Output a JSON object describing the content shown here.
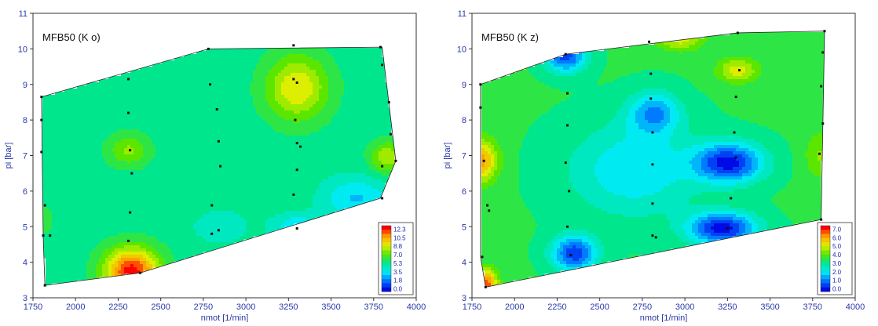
{
  "chart_data": [
    {
      "type": "heatmap",
      "title": "MFB50 (K o)",
      "xlabel": "nmot [1/min]",
      "ylabel": "pi [bar]",
      "xlim": [
        1750,
        4000
      ],
      "ylim": [
        3,
        11
      ],
      "x_ticks": [
        "1750",
        "2000",
        "2250",
        "2500",
        "2750",
        "3000",
        "3250",
        "3500",
        "3750",
        "4000"
      ],
      "y_ticks": [
        "3",
        "4",
        "5",
        "6",
        "7",
        "8",
        "9",
        "10",
        "11"
      ],
      "legend": {
        "position": "bottom-right",
        "levels": [
          "12.3",
          "10.5",
          "8.8",
          "7.0",
          "5.3",
          "3.5",
          "1.8",
          "0.0"
        ],
        "vmin": 0.0,
        "vmax": 12.3
      },
      "hull": [
        [
          1820,
          3.35
        ],
        [
          2380,
          3.7
        ],
        [
          3790,
          5.8
        ],
        [
          3880,
          6.85
        ],
        [
          3800,
          10.05
        ],
        [
          2780,
          10.0
        ],
        [
          1800,
          8.65
        ],
        [
          1810,
          4.7
        ]
      ],
      "peaks": [
        {
          "x": 3300,
          "y": 8.9,
          "value": 9.2,
          "spread": [
            180,
            0.9
          ]
        },
        {
          "x": 2330,
          "y": 3.75,
          "value": 12.3,
          "spread": [
            160,
            0.65
          ]
        },
        {
          "x": 2310,
          "y": 7.15,
          "value": 7.6,
          "spread": [
            120,
            0.45
          ]
        },
        {
          "x": 3830,
          "y": 6.95,
          "value": 8.2,
          "spread": [
            100,
            0.45
          ]
        },
        {
          "x": 3300,
          "y": 5.0,
          "value": 3.2,
          "spread": [
            150,
            0.35
          ]
        },
        {
          "x": 2850,
          "y": 5.0,
          "value": 4.0,
          "spread": [
            150,
            0.45
          ]
        },
        {
          "x": 3650,
          "y": 5.8,
          "value": 3.0,
          "spread": [
            200,
            0.6
          ]
        },
        {
          "x": 1820,
          "y": 5.2,
          "value": 5.8,
          "spread": [
            90,
            0.9
          ]
        }
      ],
      "base_value": 5.3,
      "points": [
        [
          1800,
          8.65
        ],
        [
          1800,
          8.0
        ],
        [
          1800,
          7.1
        ],
        [
          1820,
          5.6
        ],
        [
          1810,
          4.75
        ],
        [
          1850,
          4.75
        ],
        [
          1820,
          3.35
        ],
        [
          2310,
          9.15
        ],
        [
          2310,
          8.2
        ],
        [
          2320,
          7.15
        ],
        [
          2330,
          6.5
        ],
        [
          2320,
          5.4
        ],
        [
          2310,
          4.6
        ],
        [
          2380,
          3.7
        ],
        [
          2780,
          10.0
        ],
        [
          2790,
          9.0
        ],
        [
          2830,
          8.3
        ],
        [
          2840,
          7.4
        ],
        [
          2850,
          6.7
        ],
        [
          2800,
          5.6
        ],
        [
          2800,
          4.8
        ],
        [
          2840,
          4.9
        ],
        [
          3280,
          10.1
        ],
        [
          3280,
          9.15
        ],
        [
          3300,
          9.05
        ],
        [
          3290,
          8.0
        ],
        [
          3300,
          7.35
        ],
        [
          3320,
          7.25
        ],
        [
          3300,
          6.6
        ],
        [
          3280,
          5.9
        ],
        [
          3300,
          4.95
        ],
        [
          3790,
          10.05
        ],
        [
          3800,
          9.55
        ],
        [
          3840,
          8.5
        ],
        [
          3850,
          7.6
        ],
        [
          3800,
          6.7
        ],
        [
          3880,
          6.85
        ],
        [
          3800,
          5.8
        ]
      ]
    },
    {
      "type": "heatmap",
      "title": "MFB50 (K z)",
      "xlabel": "nmot [1/min]",
      "ylabel": "pi [bar]",
      "xlim": [
        1750,
        4000
      ],
      "ylim": [
        3,
        11
      ],
      "x_ticks": [
        "1750",
        "2000",
        "2250",
        "2500",
        "2750",
        "3000",
        "3250",
        "3500",
        "3750",
        "4000"
      ],
      "y_ticks": [
        "3",
        "4",
        "5",
        "6",
        "7",
        "8",
        "9",
        "10",
        "11"
      ],
      "legend": {
        "position": "bottom-right",
        "levels": [
          "7.0",
          "6.0",
          "5.0",
          "4.0",
          "3.0",
          "2.0",
          "1.0",
          "0.0"
        ],
        "vmin": 0.0,
        "vmax": 7.0
      },
      "hull": [
        [
          1800,
          4.15
        ],
        [
          1830,
          3.3
        ],
        [
          3800,
          5.2
        ],
        [
          3820,
          10.5
        ],
        [
          3310,
          10.45
        ],
        [
          2300,
          9.85
        ],
        [
          1800,
          9.0
        ]
      ],
      "peaks": [
        {
          "x": 3260,
          "y": 6.8,
          "value": 0.1,
          "spread": [
            200,
            0.55
          ]
        },
        {
          "x": 3220,
          "y": 4.95,
          "value": 0.0,
          "spread": [
            200,
            0.45
          ]
        },
        {
          "x": 2350,
          "y": 4.25,
          "value": 0.4,
          "spread": [
            130,
            0.5
          ]
        },
        {
          "x": 2300,
          "y": 9.8,
          "value": 0.5,
          "spread": [
            120,
            0.45
          ]
        },
        {
          "x": 2820,
          "y": 8.2,
          "value": 1.3,
          "spread": [
            150,
            0.6
          ]
        },
        {
          "x": 2700,
          "y": 6.6,
          "value": 1.8,
          "spread": [
            380,
            1.3
          ]
        },
        {
          "x": 1800,
          "y": 6.85,
          "value": 6.0,
          "spread": [
            100,
            0.6
          ]
        },
        {
          "x": 1830,
          "y": 3.4,
          "value": 6.6,
          "spread": [
            70,
            0.4
          ]
        },
        {
          "x": 2970,
          "y": 10.3,
          "value": 5.0,
          "spread": [
            140,
            0.35
          ]
        },
        {
          "x": 3310,
          "y": 9.4,
          "value": 5.0,
          "spread": [
            120,
            0.35
          ]
        },
        {
          "x": 3800,
          "y": 7.0,
          "value": 4.3,
          "spread": [
            100,
            0.7
          ]
        }
      ],
      "base_value": 3.3,
      "points": [
        [
          1800,
          9.0
        ],
        [
          1800,
          8.35
        ],
        [
          1820,
          6.85
        ],
        [
          1840,
          5.6
        ],
        [
          1850,
          5.45
        ],
        [
          1810,
          4.15
        ],
        [
          1830,
          3.3
        ],
        [
          2300,
          9.85
        ],
        [
          2310,
          8.75
        ],
        [
          2310,
          7.85
        ],
        [
          2300,
          6.8
        ],
        [
          2320,
          6.0
        ],
        [
          2310,
          5.0
        ],
        [
          2330,
          4.2
        ],
        [
          2790,
          10.2
        ],
        [
          2800,
          9.3
        ],
        [
          2800,
          8.6
        ],
        [
          2810,
          7.65
        ],
        [
          2810,
          6.75
        ],
        [
          2810,
          5.65
        ],
        [
          2810,
          4.75
        ],
        [
          2830,
          4.7
        ],
        [
          3310,
          10.45
        ],
        [
          3320,
          9.4
        ],
        [
          3300,
          8.65
        ],
        [
          3290,
          7.65
        ],
        [
          3300,
          6.95
        ],
        [
          3270,
          5.8
        ],
        [
          3250,
          4.95
        ],
        [
          3820,
          10.5
        ],
        [
          3810,
          9.9
        ],
        [
          3800,
          8.95
        ],
        [
          3810,
          7.9
        ],
        [
          3790,
          7.05
        ],
        [
          3800,
          5.2
        ]
      ]
    }
  ]
}
